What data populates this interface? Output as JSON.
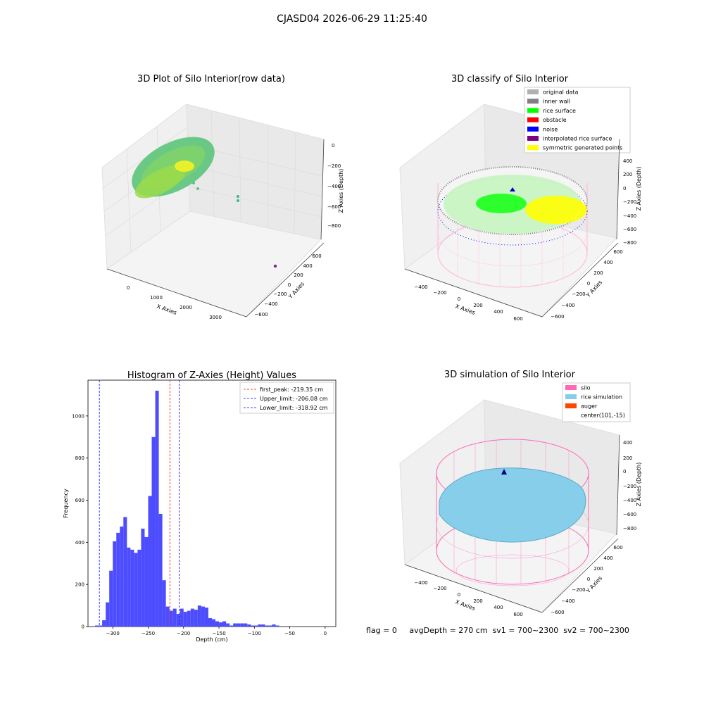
{
  "figure": {
    "suptitle": "CJASD04 2026-06-29 11:25:40"
  },
  "panel_raw": {
    "title": "3D Plot of Silo Interior(row data)",
    "xlabel": "X Axies",
    "ylabel": "Y Axies",
    "zlabel": "Z Axies (Depth)",
    "xticks": [
      "0",
      "1000",
      "2000",
      "3000"
    ],
    "yticks": [
      "600",
      "400",
      "200",
      "0",
      "−200",
      "−400",
      "−600"
    ],
    "zticks": [
      "0",
      "−200",
      "−400",
      "−600",
      "−800"
    ]
  },
  "panel_classify": {
    "title": "3D classify of Silo Interior",
    "xlabel": "X Axies",
    "ylabel": "Y Axies",
    "zlabel": "Z Axies (Depth)",
    "xticks": [
      "−400",
      "−200",
      "0",
      "200",
      "400",
      "600"
    ],
    "yticks": [
      "600",
      "400",
      "200",
      "0",
      "−200",
      "−400",
      "−600"
    ],
    "zticks": [
      "400",
      "200",
      "0",
      "−200",
      "−400",
      "−600",
      "−800"
    ],
    "legend": [
      {
        "label": "original data",
        "color": "#b0b0b0"
      },
      {
        "label": "inner wall",
        "color": "#808080"
      },
      {
        "label": "rice surface",
        "color": "#00ff00"
      },
      {
        "label": "obstacle",
        "color": "#ff0000"
      },
      {
        "label": "noise",
        "color": "#0000ff"
      },
      {
        "label": "interpolated rice surface",
        "color": "#800080"
      },
      {
        "label": "symmetric generated points",
        "color": "#ffff00"
      }
    ]
  },
  "panel_sim": {
    "title": "3D simulation of Silo Interior",
    "xlabel": "X Axies",
    "ylabel": "Y Axies",
    "zlabel": "Z Axies (Depth)",
    "xticks": [
      "−400",
      "−200",
      "0",
      "200",
      "400",
      "600"
    ],
    "yticks": [
      "600",
      "400",
      "200",
      "0",
      "−200",
      "−400",
      "−600"
    ],
    "zticks": [
      "400",
      "200",
      "0",
      "−200",
      "−400",
      "−600",
      "−800"
    ],
    "legend": [
      {
        "label": "silo",
        "color": "#ff69b4"
      },
      {
        "label": "rice simulation",
        "color": "#87ceeb"
      },
      {
        "label": "auger",
        "color": "#ff4500"
      },
      {
        "label": "center(101,-15)",
        "color": ""
      }
    ]
  },
  "status": {
    "flag": "flag = 0",
    "avg_depth": "avgDepth = 270 cm",
    "sv1": "sv1 = 700~2300",
    "sv2": "sv2 = 700~2300"
  },
  "chart_data": {
    "type": "bar",
    "title": "Histogram of Z-Axies (Height) Values",
    "xlabel": "Depth (cm)",
    "ylabel": "Frequency",
    "xlim": [
      -335,
      15
    ],
    "ylim": [
      0,
      1170
    ],
    "xticks": [
      -300,
      -250,
      -200,
      -150,
      -100,
      -50,
      0
    ],
    "yticks": [
      0,
      200,
      400,
      600,
      800,
      1000
    ],
    "bin_width": 5,
    "bin_start": -325,
    "values": [
      5,
      5,
      30,
      115,
      265,
      405,
      445,
      475,
      520,
      375,
      365,
      350,
      365,
      465,
      425,
      620,
      900,
      1120,
      535,
      220,
      95,
      75,
      85,
      60,
      85,
      70,
      75,
      85,
      80,
      100,
      95,
      90,
      40,
      35,
      25,
      20,
      25,
      15,
      5,
      15,
      15,
      15,
      15,
      10,
      5,
      5,
      10,
      10,
      5,
      5,
      10,
      5
    ],
    "bar_color": "#4d4dff",
    "vlines": [
      {
        "label": "first_peak: -219.35 cm",
        "x": -219.35,
        "color": "#ff0000"
      },
      {
        "label": "Upper_limit: -206.08 cm",
        "x": -206.08,
        "color": "#0000ff"
      },
      {
        "label": "Lower_limit: -318.92 cm",
        "x": -318.92,
        "color": "#0000ff"
      }
    ],
    "legend_position": "top-right"
  }
}
